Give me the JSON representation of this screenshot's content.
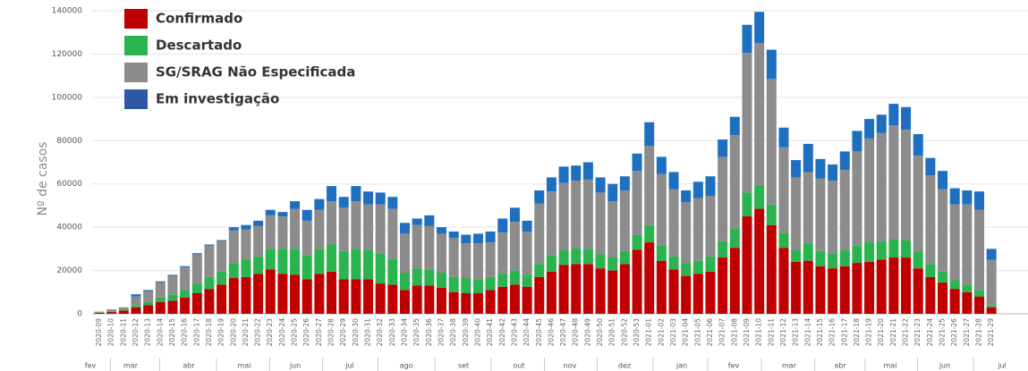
{
  "chart_data": {
    "type": "stacked_bar",
    "y_label": "Nº de casos",
    "ylim": [
      0,
      140000
    ],
    "yticks": [
      0,
      20000,
      40000,
      60000,
      80000,
      100000,
      120000,
      140000
    ],
    "grid": true,
    "legend": "top-left",
    "months": [
      "fev",
      "mar",
      "abr",
      "mai",
      "jun",
      "jul",
      "ago",
      "set",
      "out",
      "nov",
      "dez",
      "jan",
      "fev",
      "mar",
      "abr",
      "mai",
      "jun",
      "jul"
    ],
    "categories": [
      "2020-09",
      "2020-10",
      "2020-11",
      "2020-12",
      "2020-13",
      "2020-14",
      "2020-15",
      "2020-16",
      "2020-17",
      "2020-18",
      "2020-19",
      "2020-20",
      "2020-21",
      "2020-22",
      "2020-23",
      "2020-24",
      "2020-25",
      "2020-26",
      "2020-27",
      "2020-28",
      "2020-29",
      "2020-30",
      "2020-31",
      "2020-32",
      "2020-33",
      "2020-34",
      "2020-35",
      "2020-36",
      "2020-37",
      "2020-38",
      "2020-39",
      "2020-40",
      "2020-41",
      "2020-42",
      "2020-43",
      "2020-44",
      "2020-45",
      "2020-46",
      "2020-47",
      "2020-48",
      "2020-49",
      "2020-50",
      "2020-51",
      "2020-52",
      "2020-53",
      "2021-01",
      "2021-02",
      "2021-03",
      "2021-04",
      "2021-05",
      "2021-06",
      "2021-07",
      "2021-08",
      "2021-09",
      "2021-10",
      "2021-11",
      "2021-12",
      "2021-13",
      "2021-14",
      "2021-15",
      "2021-16",
      "2021-17",
      "2021-18",
      "2021-19",
      "2021-20",
      "2021-21",
      "2021-22",
      "2021-23",
      "2021-24",
      "2021-25",
      "2021-26",
      "2021-27",
      "2021-28",
      "2021-29"
    ],
    "series": [
      {
        "name": "Confirmado",
        "color": "#c00000",
        "values": [
          500,
          800,
          1500,
          3000,
          4000,
          5500,
          6000,
          7500,
          9500,
          11500,
          13500,
          16500,
          17000,
          18500,
          20500,
          18500,
          18000,
          16000,
          18500,
          19500,
          16000,
          16000,
          16000,
          14000,
          13500,
          11000,
          13000,
          13000,
          12000,
          10000,
          9500,
          9500,
          11000,
          12500,
          13500,
          12500,
          17000,
          19500,
          22500,
          23000,
          23000,
          21000,
          20000,
          23000,
          29500,
          33000,
          24500,
          20500,
          17500,
          18500,
          19500,
          26000,
          30500,
          45000,
          48500,
          41000,
          30500,
          24000,
          24500,
          22000,
          21000,
          22000,
          23500,
          24000,
          25000,
          26000,
          26000,
          21000,
          17000,
          14500,
          11500,
          10000,
          8000,
          3000
        ]
      },
      {
        "name": "Descartado",
        "color": "#2bb34f",
        "values": [
          200,
          300,
          500,
          1000,
          1500,
          2000,
          3000,
          3500,
          4500,
          5500,
          6000,
          7000,
          8000,
          8000,
          9500,
          11500,
          12000,
          11000,
          11500,
          12500,
          13000,
          14000,
          13500,
          14000,
          12000,
          8000,
          8000,
          7500,
          7000,
          7000,
          7000,
          6500,
          6000,
          6000,
          6500,
          5500,
          6000,
          7500,
          7000,
          7500,
          7000,
          6500,
          6000,
          6000,
          7000,
          8000,
          7000,
          6000,
          6000,
          6000,
          7000,
          7500,
          9000,
          11000,
          11000,
          9500,
          7000,
          5500,
          8000,
          7000,
          7000,
          7500,
          8000,
          9000,
          8500,
          8500,
          8000,
          7500,
          6000,
          5000,
          4000,
          3500,
          3000,
          1000
        ]
      },
      {
        "name": "SG/SRAG Não Especificada",
        "color": "#8c8c8c",
        "values": [
          300,
          700,
          1000,
          4000,
          5000,
          7000,
          8500,
          10500,
          13500,
          14500,
          14000,
          15000,
          14000,
          14000,
          15500,
          15000,
          18500,
          16000,
          18000,
          20000,
          20000,
          22000,
          21000,
          22500,
          23000,
          18000,
          20000,
          20000,
          18000,
          18000,
          16000,
          16500,
          16000,
          19000,
          22500,
          20000,
          28000,
          29500,
          31000,
          31000,
          32000,
          28500,
          26000,
          28000,
          29500,
          36500,
          33000,
          31000,
          28000,
          29000,
          28000,
          39000,
          43000,
          64500,
          65500,
          58000,
          39500,
          33500,
          33000,
          33500,
          33500,
          37000,
          43500,
          48000,
          50000,
          52500,
          51000,
          44500,
          41000,
          38000,
          35000,
          37000,
          37000,
          21000
        ]
      },
      {
        "name": "Em investigação",
        "color": "#1e6fc0",
        "values": [
          0,
          200,
          0,
          1000,
          500,
          500,
          500,
          500,
          500,
          500,
          500,
          1500,
          2000,
          2500,
          2500,
          2000,
          3500,
          5000,
          5000,
          7000,
          5000,
          7000,
          6000,
          5500,
          5500,
          5000,
          3000,
          5000,
          3000,
          3000,
          4000,
          4500,
          5000,
          6500,
          6500,
          5000,
          6000,
          6500,
          7500,
          7000,
          8000,
          7000,
          8000,
          6500,
          8000,
          11000,
          8000,
          8000,
          5500,
          7500,
          9000,
          8000,
          8500,
          13000,
          14500,
          13500,
          9000,
          8000,
          13000,
          9000,
          7500,
          8500,
          9500,
          9000,
          8500,
          10000,
          10500,
          10000,
          8000,
          8500,
          7500,
          6500,
          8500,
          5000
        ]
      }
    ]
  }
}
